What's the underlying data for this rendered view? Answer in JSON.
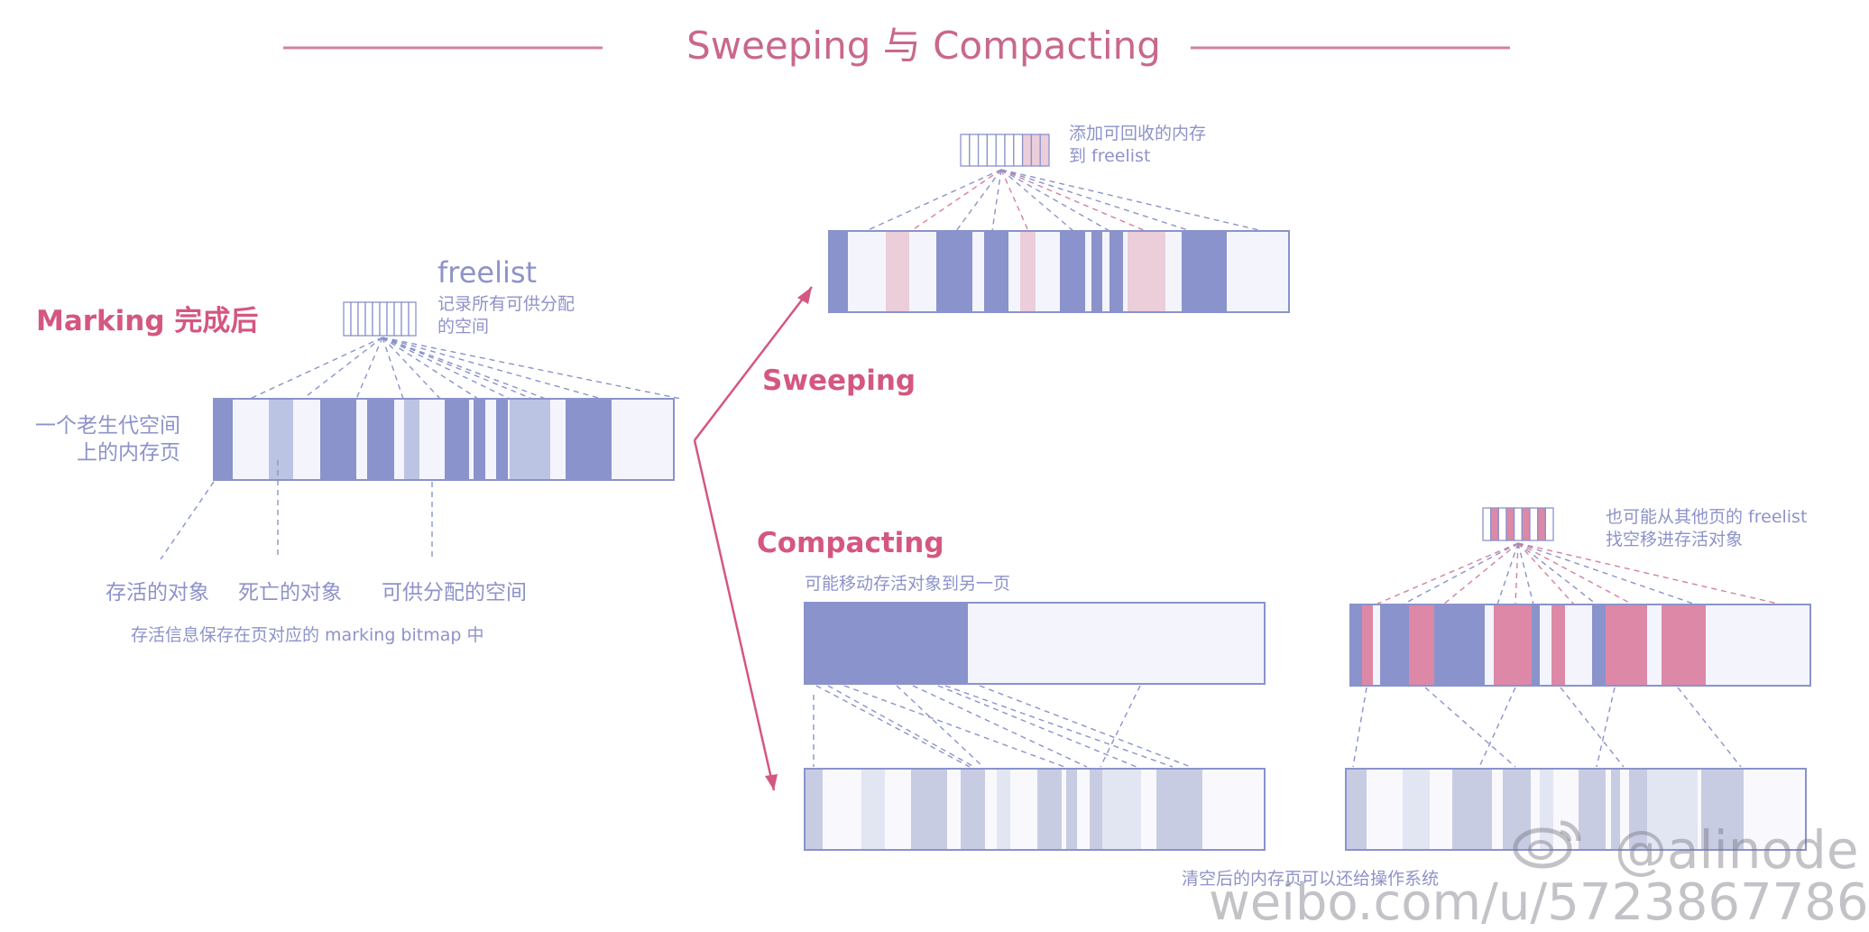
{
  "title": "Sweeping 与 Compacting",
  "colors": {
    "accent": "#d4577f",
    "live": "#8a93cb",
    "dead": "#bcc4e4",
    "free": "#f4f5fc",
    "sweep_reclaimed": "#eccdda",
    "moved": "#dd88a6",
    "outline": "#8a93cb",
    "faded_live": "#c8cce3",
    "faded_free": "#e2e6f3"
  },
  "marking": {
    "heading": "Marking 完成后",
    "freelist_title": "freelist",
    "freelist_desc": "记录所有可供分配\n的空间",
    "page_caption": "一个老生代空间\n上的内存页",
    "legend": {
      "live": "存活的对象",
      "dead": "死亡的对象",
      "free": "可供分配的空间"
    },
    "bitmap_note": "存活信息保存在页对应的 marking bitmap 中"
  },
  "sweeping": {
    "heading": "Sweeping",
    "freelist_note": "添加可回收的内存\n到 freelist"
  },
  "compacting": {
    "heading": "Compacting",
    "move_note": "可能移动存活对象到另一页",
    "other_freelist_note": "也可能从其他页的 freelist\n找空移进存活对象",
    "release_note": "清空后的内存页可以还给操作系统"
  },
  "watermark": {
    "handle": "@alinode",
    "url": "weibo.com/u/5723867786"
  },
  "icons": [
    "weibo-logo-icon",
    "arrow-icon"
  ]
}
